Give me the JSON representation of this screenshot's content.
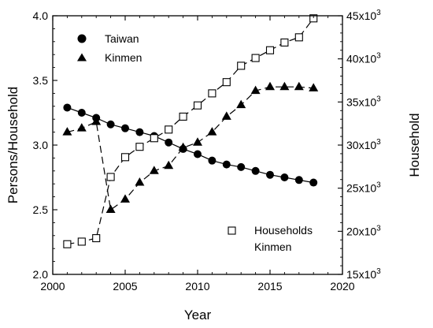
{
  "chart_data": {
    "type": "line",
    "xlabel": "Year",
    "ylabel_left": "Persons/Household",
    "ylabel_right": "Household",
    "xlim": [
      2000,
      2020
    ],
    "ylim_left": [
      2.0,
      4.0
    ],
    "ylim_right": [
      15000,
      45000
    ],
    "x_ticks": [
      "2000",
      "2005",
      "2010",
      "2015",
      "2020"
    ],
    "y_left_ticks": [
      "2.0",
      "2.5",
      "3.0",
      "3.5",
      "4.0"
    ],
    "y_right_ticks": [
      {
        "value": 15000,
        "base": "15x10",
        "exp": "3"
      },
      {
        "value": 20000,
        "base": "20x10",
        "exp": "3"
      },
      {
        "value": 25000,
        "base": "25x10",
        "exp": "3"
      },
      {
        "value": 30000,
        "base": "30x10",
        "exp": "3"
      },
      {
        "value": 35000,
        "base": "35x10",
        "exp": "3"
      },
      {
        "value": 40000,
        "base": "40x10",
        "exp": "3"
      },
      {
        "value": 45000,
        "base": "45x10",
        "exp": "3"
      }
    ],
    "grid": false,
    "legend_top": {
      "placement": "top-left",
      "entries": [
        {
          "name": "Taiwan",
          "marker": "circle"
        },
        {
          "name": "Kinmen",
          "marker": "triangle"
        }
      ]
    },
    "legend_bottom": {
      "placement": "bottom-right",
      "entries": [
        {
          "name": "Households",
          "marker": "square-open"
        },
        {
          "name": "Kinmen",
          "marker": "none"
        }
      ]
    },
    "series": [
      {
        "name": "Taiwan",
        "axis": "left",
        "marker": "circle",
        "line": "solid",
        "x": [
          2001,
          2002,
          2003,
          2004,
          2005,
          2006,
          2007,
          2008,
          2009,
          2010,
          2011,
          2012,
          2013,
          2014,
          2015,
          2016,
          2017,
          2018
        ],
        "y": [
          3.29,
          3.25,
          3.21,
          3.16,
          3.13,
          3.1,
          3.07,
          3.02,
          2.97,
          2.93,
          2.88,
          2.85,
          2.83,
          2.8,
          2.77,
          2.75,
          2.73,
          2.71
        ]
      },
      {
        "name": "Kinmen",
        "axis": "left",
        "marker": "triangle",
        "line": "dashed",
        "x": [
          2001,
          2002,
          2003,
          2004,
          2005,
          2006,
          2007,
          2008,
          2009,
          2010,
          2011,
          2012,
          2013,
          2014,
          2015,
          2016,
          2017,
          2018
        ],
        "y": [
          3.1,
          3.13,
          3.18,
          2.5,
          2.58,
          2.71,
          2.8,
          2.84,
          2.98,
          3.02,
          3.1,
          3.22,
          3.31,
          3.42,
          3.45,
          3.45,
          3.45,
          3.44
        ]
      },
      {
        "name": "Households Kinmen",
        "axis": "right",
        "marker": "square-open",
        "line": "dashed",
        "x": [
          2001,
          2002,
          2003,
          2004,
          2005,
          2006,
          2007,
          2008,
          2009,
          2010,
          2011,
          2012,
          2013,
          2014,
          2015,
          2016,
          2017,
          2018
        ],
        "y": [
          18500,
          18800,
          19200,
          26300,
          28600,
          29800,
          30800,
          31800,
          33300,
          34600,
          36000,
          37300,
          39200,
          40100,
          41000,
          41900,
          42500,
          44700
        ]
      }
    ]
  },
  "colors": {
    "ink": "#000000",
    "background": "#ffffff",
    "marker_fill_open": "#ffffff"
  }
}
